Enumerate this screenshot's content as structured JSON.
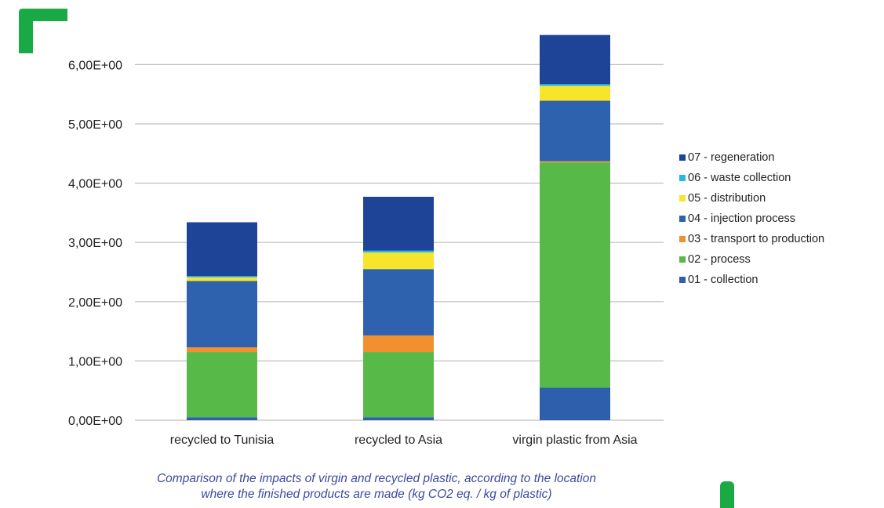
{
  "colors": {
    "brand_green": "#1aaa45",
    "caption_blue": "#3a4aa0",
    "gridline": "#bfbfbf"
  },
  "decor": {
    "corner_icon": "corner-bracket-icon",
    "pill_icon": "green-pill-icon"
  },
  "caption": {
    "line1": "Comparison of the impacts of virgin and recycled plastic, according to the location",
    "line2": "where the finished products are made (kg CO2 eq. / kg of plastic)"
  },
  "chart_data": {
    "type": "bar",
    "stacked": true,
    "categories": [
      "recycled to Tunisia",
      "recycled to Asia",
      "virgin plastic from Asia"
    ],
    "ylim": [
      0,
      6.5
    ],
    "yticks": [
      0,
      1,
      2,
      3,
      4,
      5,
      6
    ],
    "ytick_labels": [
      "0,00E+00",
      "1,00E+00",
      "2,00E+00",
      "3,00E+00",
      "4,00E+00",
      "5,00E+00",
      "6,00E+00"
    ],
    "grid": true,
    "legend_position": "right",
    "series": [
      {
        "name": "01 - collection",
        "color": "#2d5fad",
        "values": [
          0.05,
          0.05,
          0.55
        ]
      },
      {
        "name": "02 - process",
        "color": "#57b947",
        "values": [
          1.1,
          1.1,
          3.8
        ]
      },
      {
        "name": "03 - transport to production",
        "color": "#f28f2e",
        "values": [
          0.08,
          0.28,
          0.02
        ]
      },
      {
        "name": "04 - injection process",
        "color": "#2f62ae",
        "values": [
          1.12,
          1.12,
          1.02
        ]
      },
      {
        "name": "05 - distribution",
        "color": "#f7e52b",
        "values": [
          0.06,
          0.28,
          0.25
        ]
      },
      {
        "name": "06 - waste collection",
        "color": "#27b8ea",
        "values": [
          0.02,
          0.03,
          0.03
        ]
      },
      {
        "name": "07 - regeneration",
        "color": "#1e4497",
        "values": [
          0.91,
          0.91,
          0.83
        ]
      }
    ]
  }
}
